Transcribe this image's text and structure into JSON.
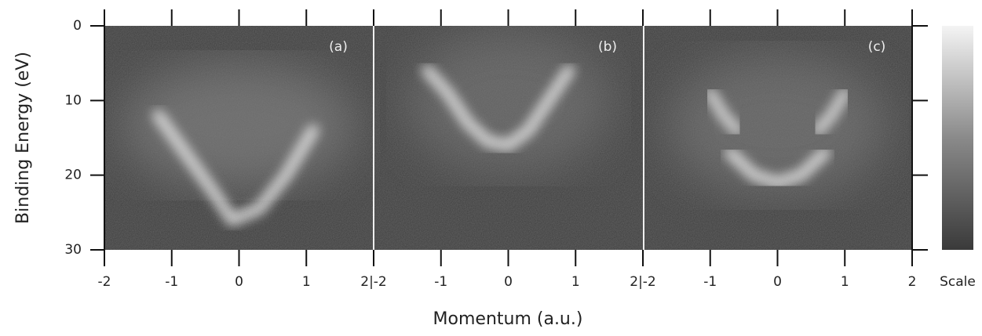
{
  "chart_data": {
    "type": "intensity-map",
    "xlabel": "Momentum (a.u.)",
    "ylabel": "Binding Energy (eV)",
    "colorbar_label": "Scale",
    "ylim": [
      0,
      30
    ],
    "y_inverted": true,
    "yticks": [
      0,
      10,
      20,
      30
    ],
    "panels": [
      {
        "label": "(a)",
        "xlim": [
          -2,
          2
        ],
        "xticks": [
          -2,
          -1,
          0,
          1
        ],
        "series": [
          {
            "color": "#f2f2f2",
            "x": [
              -1.2,
              -0.8,
              -0.4,
              -0.1,
              0.3,
              0.7,
              1.1
            ],
            "values": [
              12,
              17,
              22,
              26,
              24.5,
              20,
              14
            ]
          }
        ]
      },
      {
        "label": "(b)",
        "xlim": [
          -2,
          2
        ],
        "xticks": [
          {
            "value": -2,
            "label": "2|-2"
          },
          -1,
          0,
          1
        ],
        "series": [
          {
            "color": "#f2f2f2",
            "x": [
              -1.2,
              -0.9,
              -0.6,
              -0.3,
              0,
              0.3,
              0.6,
              0.9
            ],
            "values": [
              6,
              9,
              13,
              15.5,
              16,
              14,
              10,
              6
            ]
          }
        ]
      },
      {
        "label": "(c)",
        "xlim": [
          -2,
          2
        ],
        "xticks": [
          {
            "value": -2,
            "label": "2|-2"
          },
          -1,
          0,
          1,
          2
        ],
        "series": [
          {
            "color": "#e8e8e8",
            "x": [
              -1,
              -0.8,
              -0.6
            ],
            "values": [
              9,
              12,
              14
            ]
          },
          {
            "color": "#e8e8e8",
            "x": [
              1,
              0.8,
              0.6
            ],
            "values": [
              9,
              12,
              14
            ]
          },
          {
            "color": "#f2f2f2",
            "x": [
              -0.7,
              -0.35,
              0,
              0.35,
              0.7
            ],
            "values": [
              17,
              20,
              21,
              20,
              17
            ]
          }
        ]
      }
    ]
  }
}
